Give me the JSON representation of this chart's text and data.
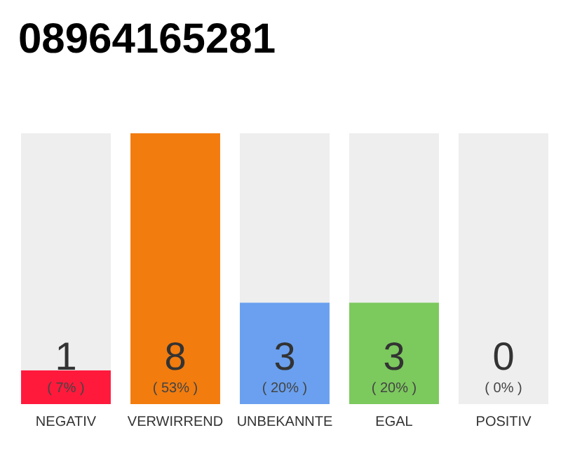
{
  "chart_data": {
    "type": "bar",
    "title": "08964165281",
    "stacked": true,
    "categories": [
      "NEGATIV",
      "VERWIRREND",
      "UNBEKANNTE",
      "EGAL",
      "POSITIV"
    ],
    "series": [
      {
        "colors": [
          "#ff1a3c",
          "#f27c0e",
          "#6aa0ef",
          "#7cc95e",
          "#cccccc"
        ],
        "values": [
          1,
          8,
          3,
          3,
          0
        ],
        "data_labels": true
      },
      {
        "color": "#eeeeee",
        "values": [
          7,
          0,
          5,
          5,
          8
        ]
      }
    ],
    "annotations": [
      "( 7% )",
      "( 53% )",
      "( 20% )",
      "( 20% )",
      "( 0% )"
    ],
    "tick_labels": "x"
  }
}
